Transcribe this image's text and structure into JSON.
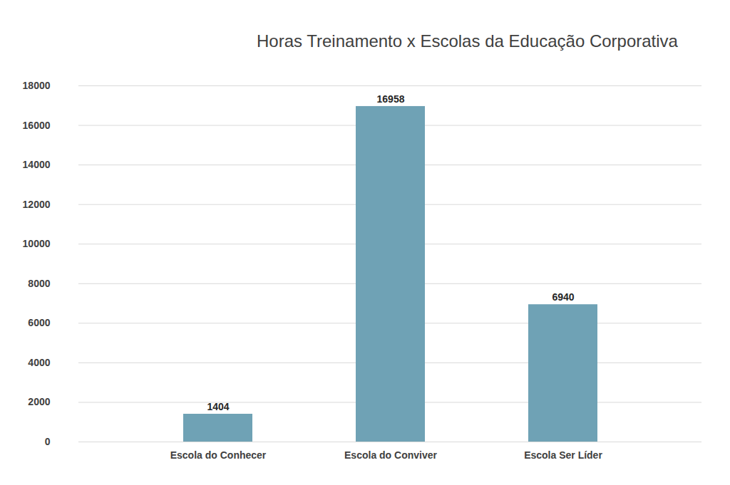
{
  "chart_data": {
    "type": "bar",
    "title": "Horas Treinamento x Escolas da Educação Corporativa",
    "categories": [
      "Escola do Conhecer",
      "Escola do Conviver",
      "Escola Ser Líder"
    ],
    "values": [
      1404,
      16958,
      6940
    ],
    "color": "#6fa2b5",
    "ylim": [
      0,
      18000
    ],
    "yticks": [
      0,
      2000,
      4000,
      6000,
      8000,
      10000,
      12000,
      14000,
      16000,
      18000
    ],
    "grid": true,
    "data_labels": true
  }
}
